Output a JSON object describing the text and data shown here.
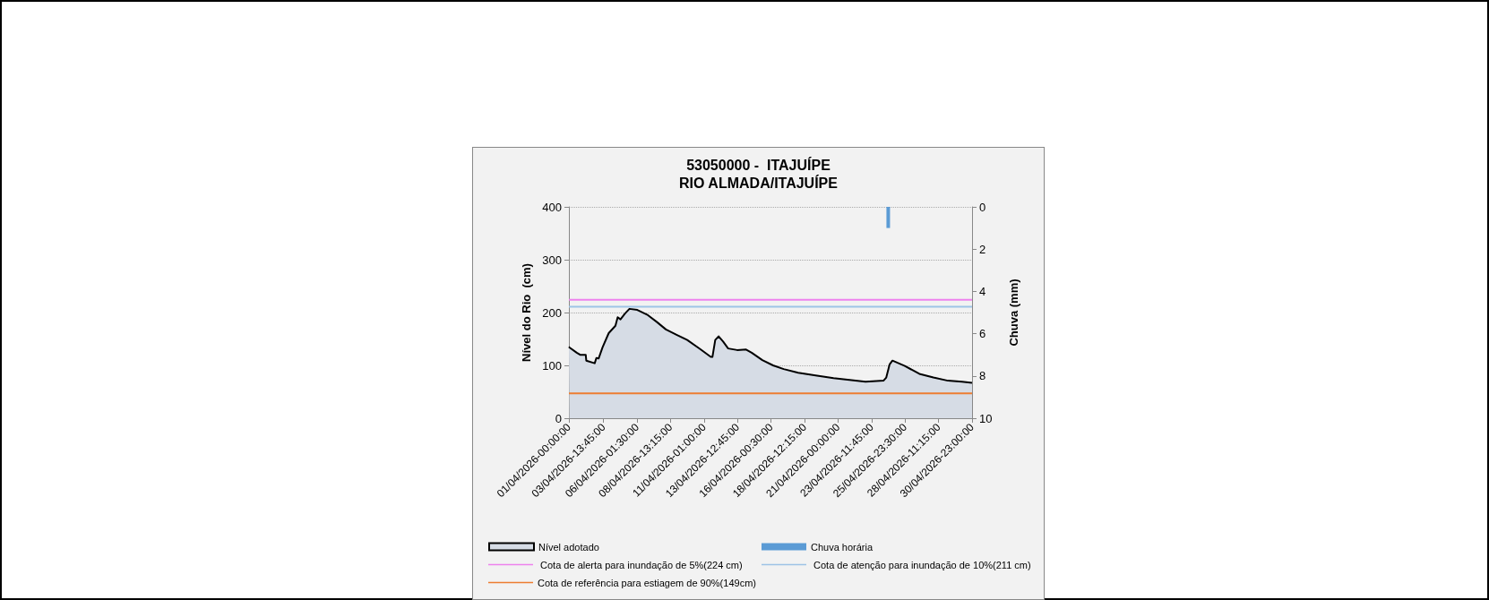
{
  "chart_data": {
    "type": "area",
    "title": "53050000 -  ITAJUÍPE",
    "subtitle": "RIO ALMADA/ITAJUÍPE",
    "ylabel": "Nível do Rio  (cm)",
    "y2label": "Chuva (mm)",
    "xlim": [
      "2026-04-01T00:00",
      "2026-04-30T23:00"
    ],
    "xticks": [
      {
        "value": "2026-04-01T00:00",
        "label": "01/04/2026-00:00:00"
      },
      {
        "value": "2026-04-03T13:45",
        "label": "03/04/2026-13:45:00"
      },
      {
        "value": "2026-04-06T01:30",
        "label": "06/04/2026-01:30:00"
      },
      {
        "value": "2026-04-08T13:15",
        "label": "08/04/2026-13:15:00"
      },
      {
        "value": "2026-04-11T01:00",
        "label": "11/04/2026-01:00:00"
      },
      {
        "value": "2026-04-13T12:45",
        "label": "13/04/2026-12:45:00"
      },
      {
        "value": "2026-04-16T00:30",
        "label": "16/04/2026-00:30:00"
      },
      {
        "value": "2026-04-18T12:15",
        "label": "18/04/2026-12:15:00"
      },
      {
        "value": "2026-04-21T00:00",
        "label": "21/04/2026-00:00:00"
      },
      {
        "value": "2026-04-23T11:45",
        "label": "23/04/2026-11:45:00"
      },
      {
        "value": "2026-04-25T23:30",
        "label": "25/04/2026-23:30:00"
      },
      {
        "value": "2026-04-28T11:15",
        "label": "28/04/2026-11:15:00"
      },
      {
        "value": "2026-04-30T23:00",
        "label": "30/04/2026-23:00:00"
      }
    ],
    "ylim": [
      0,
      400
    ],
    "yticks": [
      0,
      100,
      200,
      300,
      400
    ],
    "y2lim": [
      10,
      0
    ],
    "y2ticks": [
      0,
      2,
      4,
      6,
      8,
      10
    ],
    "grid": "y",
    "legend": "bottom",
    "series": [
      {
        "name": "Nível adotado",
        "color": "#d6dce5",
        "x": [
          "2026-04-01T00:00",
          "2026-04-01T01:00",
          "2026-04-01T14:00",
          "2026-04-01T20:00",
          "2026-04-02T06:00",
          "2026-04-02T07:00",
          "2026-04-02T22:00",
          "2026-04-03T01:00",
          "2026-04-03T05:00",
          "2026-04-03T12:00",
          "2026-04-03T23:00",
          "2026-04-04T11:00",
          "2026-04-04T15:00",
          "2026-04-04T20:00",
          "2026-04-05T04:00",
          "2026-04-05T12:00",
          "2026-04-06T02:00",
          "2026-04-06T21:00",
          "2026-04-07T13:00",
          "2026-04-08T05:00",
          "2026-04-09T00:00",
          "2026-04-09T19:00",
          "2026-04-10T18:00",
          "2026-04-11T13:00",
          "2026-04-11T16:00",
          "2026-04-11T21:00",
          "2026-04-12T03:00",
          "2026-04-12T11:00",
          "2026-04-12T20:00",
          "2026-04-13T12:00",
          "2026-04-14T04:00",
          "2026-04-14T14:00",
          "2026-04-15T09:00",
          "2026-04-16T04:00",
          "2026-04-16T23:00",
          "2026-04-18T01:00",
          "2026-04-19T08:00",
          "2026-04-20T16:00",
          "2026-04-22T00:00",
          "2026-04-23T01:00",
          "2026-04-24T09:00",
          "2026-04-24T14:00",
          "2026-04-24T20:00",
          "2026-04-25T01:00",
          "2026-04-25T23:00",
          "2026-04-27T01:00",
          "2026-04-28T02:00",
          "2026-04-29T04:00",
          "2026-04-30T05:00",
          "2026-04-30T23:00"
        ],
        "values": [
          135,
          134,
          124,
          120,
          120,
          109,
          104,
          114,
          113,
          134,
          161,
          175,
          191,
          187,
          198,
          207,
          205,
          195,
          182,
          168,
          158,
          148,
          131,
          116,
          116,
          148,
          155,
          145,
          132,
          129,
          130,
          124,
          110,
          100,
          93,
          86,
          81,
          76,
          72,
          69,
          71,
          77,
          102,
          109,
          99,
          84,
          77,
          71,
          69,
          67
        ]
      },
      {
        "name": "Chuva horária",
        "type": "bar",
        "axis": "y2",
        "color": "#5b9bd5",
        "x": [
          "2026-04-24T17:30"
        ],
        "values": [
          1
        ]
      }
    ],
    "ref_lines": [
      {
        "axis": "y",
        "value": 224,
        "label": " Cota de alerta para inundação de 5%(224 cm)",
        "color": "#ee82ee"
      },
      {
        "axis": "y",
        "value": 211,
        "label": " Cota de atenção para inundação de 10%(211 cm)",
        "color": "#9dc3e6"
      },
      {
        "axis": "y",
        "value": 47,
        "label": "Cota de referência para estiagem de 90%(149cm)",
        "color": "#ed7d31"
      }
    ]
  }
}
